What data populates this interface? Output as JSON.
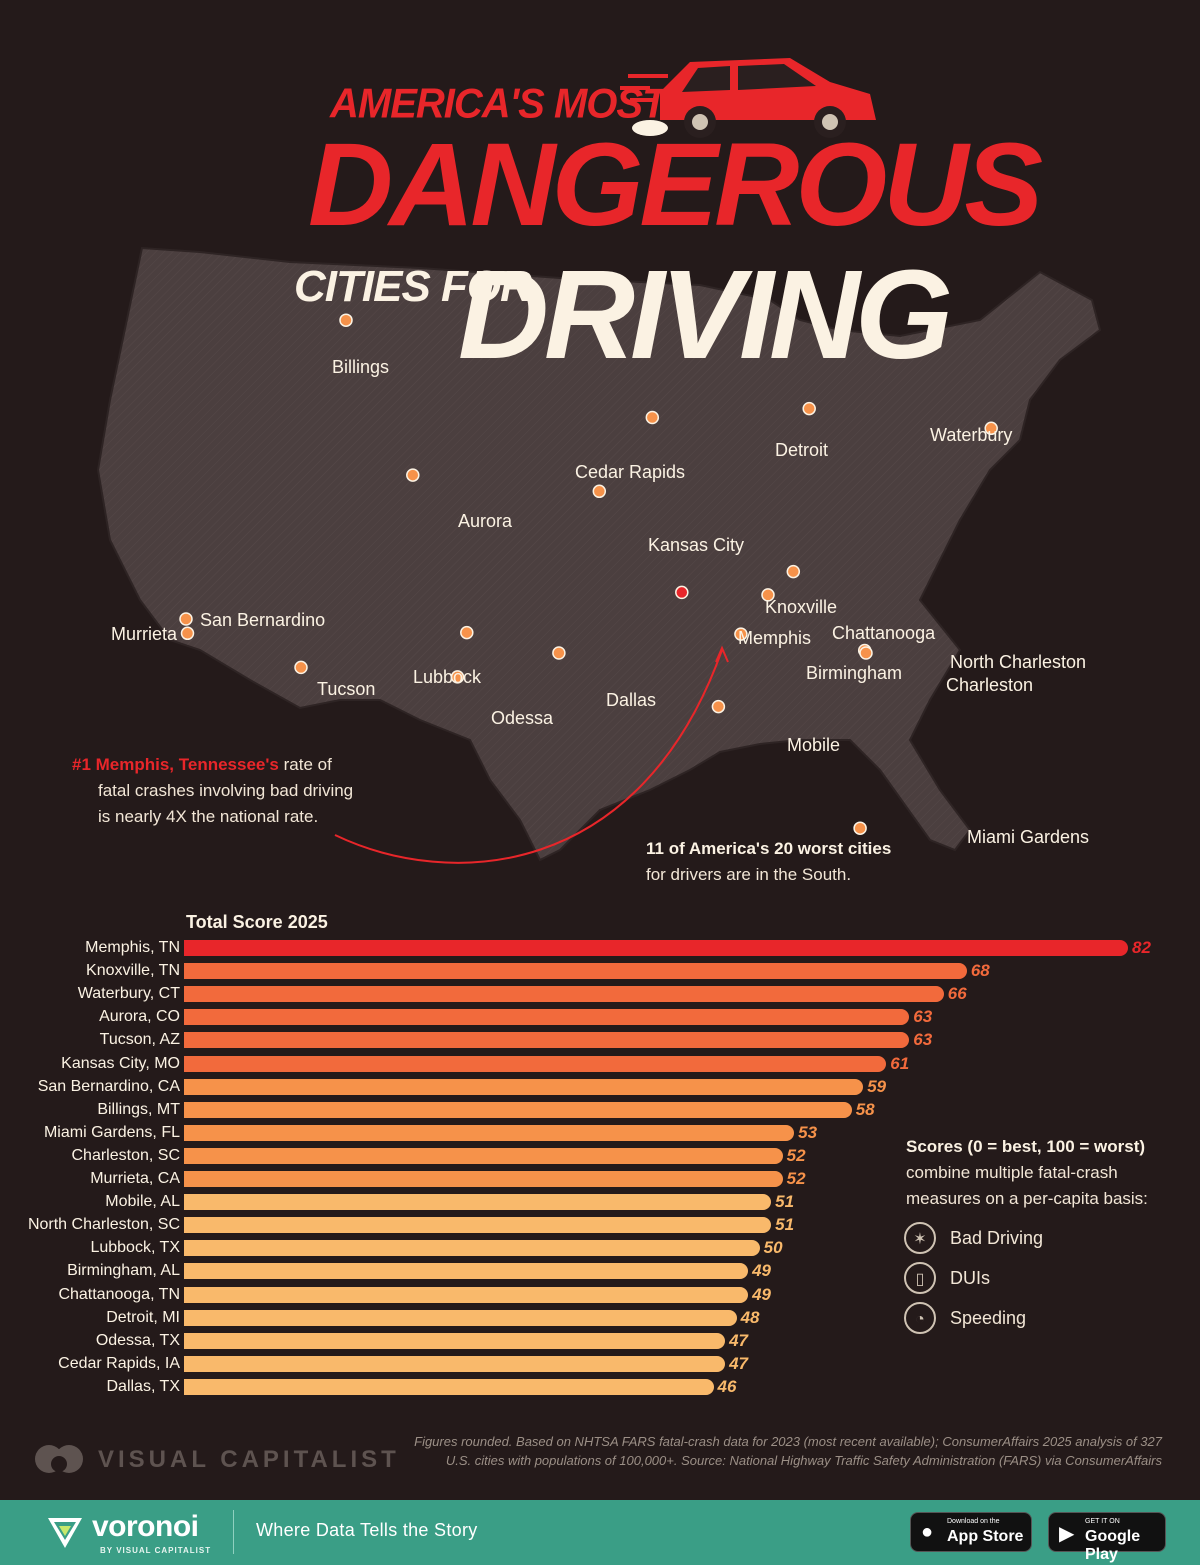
{
  "title": {
    "line1": "AMERICA'S MOST",
    "line2": "DANGEROUS",
    "line3": "CITIES FOR",
    "line4": "DRIVING"
  },
  "map_cities": [
    {
      "name": "Billings",
      "lon": -108.5,
      "lat": 45.78
    },
    {
      "name": "Waterbury",
      "lon": -73.05,
      "lat": 41.56
    },
    {
      "name": "Detroit",
      "lon": -83.05,
      "lat": 42.33
    },
    {
      "name": "Cedar Rapids",
      "lon": -91.67,
      "lat": 41.98
    },
    {
      "name": "Aurora",
      "lon": -104.83,
      "lat": 39.73
    },
    {
      "name": "Kansas City",
      "lon": -94.58,
      "lat": 39.1
    },
    {
      "name": "Knoxville",
      "lon": -83.92,
      "lat": 35.96
    },
    {
      "name": "San Bernardino",
      "lon": -117.29,
      "lat": 34.11
    },
    {
      "name": "Murrieta",
      "lon": -117.21,
      "lat": 33.55
    },
    {
      "name": "Memphis",
      "lon": -90.05,
      "lat": 35.15
    },
    {
      "name": "Chattanooga",
      "lon": -85.31,
      "lat": 35.05
    },
    {
      "name": "North Charleston",
      "lon": -80.0,
      "lat": 32.88
    },
    {
      "name": "Charleston",
      "lon": -79.93,
      "lat": 32.78
    },
    {
      "name": "Birmingham",
      "lon": -86.8,
      "lat": 33.52
    },
    {
      "name": "Lubbock",
      "lon": -101.86,
      "lat": 33.58
    },
    {
      "name": "Tucson",
      "lon": -110.97,
      "lat": 32.22
    },
    {
      "name": "Dallas",
      "lon": -96.8,
      "lat": 32.78
    },
    {
      "name": "Odessa",
      "lon": -102.37,
      "lat": 31.85
    },
    {
      "name": "Mobile",
      "lon": -88.04,
      "lat": 30.69
    },
    {
      "name": "Miami Gardens",
      "lon": -80.25,
      "lat": 25.94
    }
  ],
  "annotations": {
    "memphis_highlight": "#1 Memphis, Tennessee's",
    "memphis_rest1": "rate of",
    "memphis_line2": "fatal crashes involving bad driving",
    "memphis_line3": "is nearly 4X the national rate.",
    "south_bold": "11 of America's 20 worst cities",
    "south_rest": "for drivers are in the South."
  },
  "chart_data": {
    "type": "bar",
    "orientation": "horizontal",
    "title": "Total Score 2025",
    "categories": [
      "Memphis, TN",
      "Knoxville, TN",
      "Waterbury, CT",
      "Aurora, CO",
      "Tucson, AZ",
      "Kansas City, MO",
      "San Bernardino, CA",
      "Billings, MT",
      "Miami Gardens, FL",
      "Charleston, SC",
      "Murrieta, CA",
      "Mobile, AL",
      "North Charleston, SC",
      "Lubbock, TX",
      "Birmingham, AL",
      "Chattanooga, TN",
      "Detroit, MI",
      "Odessa, TX",
      "Cedar Rapids, IA",
      "Dallas, TX"
    ],
    "values": [
      82,
      68,
      66,
      63,
      63,
      61,
      59,
      58,
      53,
      52,
      52,
      51,
      51,
      50,
      49,
      49,
      48,
      47,
      47,
      46
    ],
    "xlim": [
      0,
      100
    ],
    "colors": {
      "top": "#e8262a",
      "high": "#f26a3c",
      "mid": "#f6924a",
      "low": "#f9b96b"
    }
  },
  "legend": {
    "heading": "Scores (0 = best, 100 = worst)",
    "line2": "combine multiple fatal-crash",
    "line3": "measures on a per-capita basis:",
    "items": [
      {
        "label": "Bad Driving",
        "icon": "crash-icon"
      },
      {
        "label": "DUIs",
        "icon": "bottle-icon"
      },
      {
        "label": "Speeding",
        "icon": "speedometer-icon"
      }
    ]
  },
  "source": {
    "line1": "Figures rounded. Based on NHTSA FARS fatal-crash data for 2023 (most recent available); ConsumerAffairs 2025 analysis of 327",
    "line2": "U.S. cities with populations of 100,000+. Source: National Highway Traffic Safety Administration (FARS) via ConsumerAffairs"
  },
  "brand": {
    "vc": "VISUAL CAPITALIST",
    "voronoi": "voronoi",
    "voronoi_sub": "BY VISUAL CAPITALIST",
    "tagline": "Where Data Tells the Story",
    "appstore_small": "Download on the",
    "appstore_big": "App Store",
    "googleplay_small": "GET IT ON",
    "googleplay_big": "Google Play"
  }
}
